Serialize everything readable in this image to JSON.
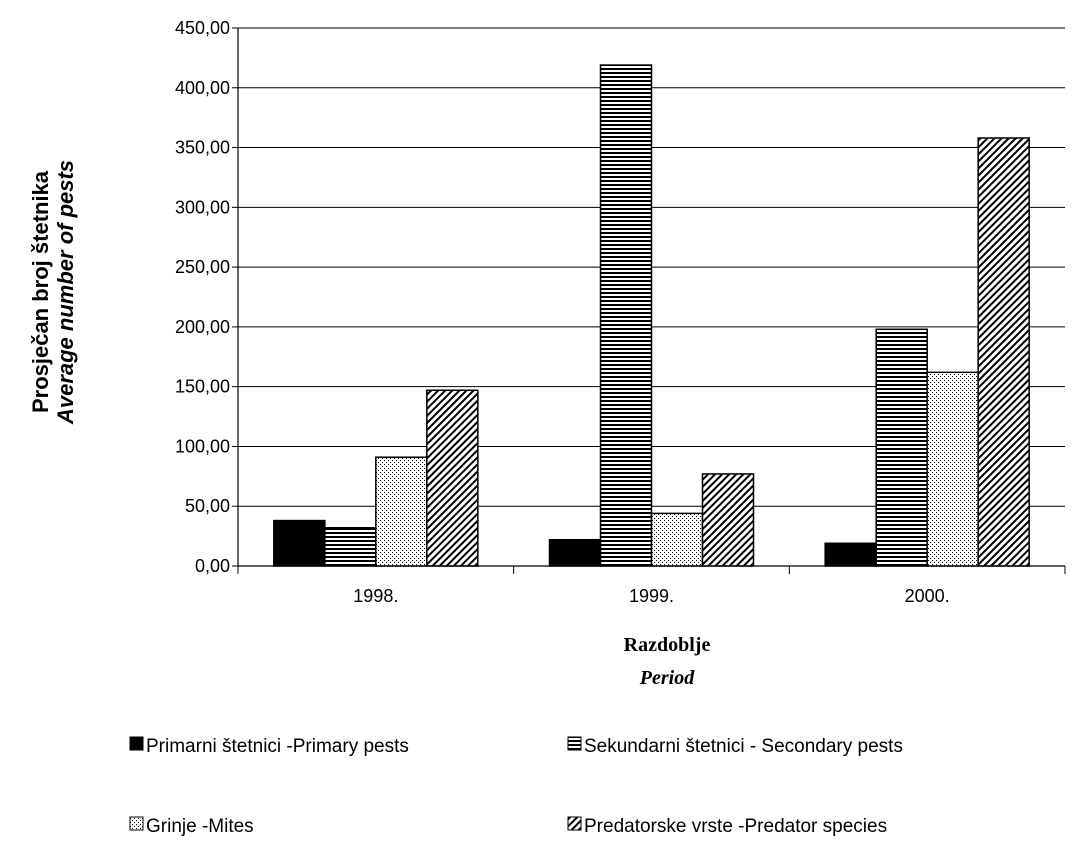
{
  "chart_data": {
    "type": "bar",
    "categories": [
      "1998.",
      "1999.",
      "2000."
    ],
    "series": [
      {
        "name": "Primarni štetnici -Primary pests",
        "values": [
          38,
          22,
          19
        ],
        "fill": "#000000",
        "pattern": "solid"
      },
      {
        "name": "Sekundarni  štetnici - Secondary pests",
        "values": [
          32,
          419,
          198
        ],
        "fill": "#000000",
        "pattern": "horizontal-lines"
      },
      {
        "name": "Grinje -Mites",
        "values": [
          91,
          44,
          162
        ],
        "fill": "#000000",
        "pattern": "dots"
      },
      {
        "name": "Predatorske vrste -Predator species",
        "values": [
          147,
          77,
          358
        ],
        "fill": "#000000",
        "pattern": "diagonal-lines"
      }
    ],
    "ylabel_line1": "Prosječan broj štetnika",
    "ylabel_line2": "Average number of pests",
    "xlabel_line1": "Razdoblje",
    "xlabel_line2": "Period",
    "ylim": [
      0,
      450
    ],
    "yticks": [
      "0,00",
      "50,00",
      "100,00",
      "150,00",
      "200,00",
      "250,00",
      "300,00",
      "350,00",
      "400,00",
      "450,00"
    ],
    "grid": true,
    "legend_position": "bottom"
  }
}
